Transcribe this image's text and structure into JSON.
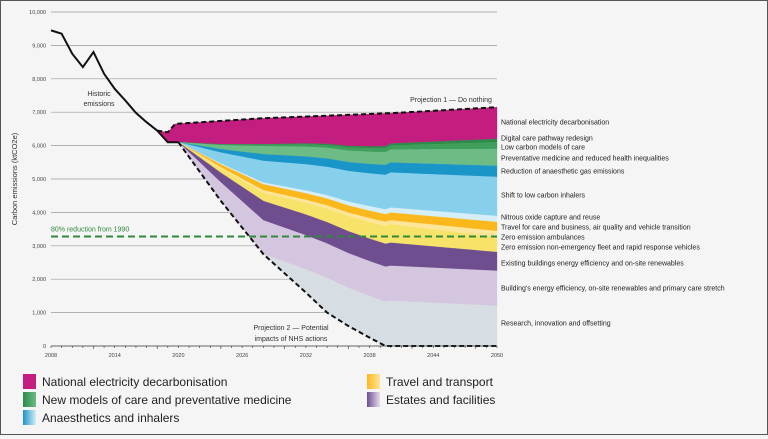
{
  "chart_data": {
    "type": "area",
    "ylabel": "Carbon emissions (ktCO2e)",
    "xlabel": "",
    "xlim": [
      2008,
      2050
    ],
    "ylim": [
      0,
      10000
    ],
    "grid": true,
    "x_ticks": [
      "2008",
      "2014",
      "2020",
      "2026",
      "2032",
      "2038",
      "2044",
      "2050"
    ],
    "y_ticks": [
      "0",
      "1,000",
      "2,000",
      "3,000",
      "4,000",
      "5,000",
      "6,000",
      "7,000",
      "8,000",
      "9,000",
      "10,000"
    ],
    "historic": {
      "name": "Historic emissions",
      "x": [
        2008,
        2009,
        2010,
        2011,
        2012,
        2013,
        2014,
        2015,
        2016,
        2017,
        2018,
        2019,
        2020
      ],
      "y": [
        9450,
        9350,
        8750,
        8350,
        8800,
        8150,
        7700,
        7350,
        6980,
        6700,
        6450,
        6100,
        6100
      ]
    },
    "projection_1": {
      "name": "Projection 1 — Do nothing",
      "x": [
        2018,
        2019,
        2019.7,
        2028,
        2040,
        2050
      ],
      "y": [
        6450,
        6400,
        6650,
        6820,
        6970,
        7150
      ]
    },
    "projection_2": {
      "name": "Projection 2 — Potential impacts of NHS actions",
      "x": [
        2020,
        2024,
        2028,
        2032,
        2034,
        2036,
        2038,
        2039.5,
        2050
      ],
      "y": [
        6100,
        4340,
        2750,
        1600,
        1000,
        600,
        250,
        0,
        0
      ]
    },
    "target": {
      "name": "80% reduction from 1990",
      "y": 3280
    },
    "stack_x": [
      2020,
      2024,
      2028,
      2034,
      2040,
      2050
    ],
    "series": [
      {
        "name": "National electricity decarbonisation",
        "color": "#c21d7f",
        "values": [
          550,
          710,
          780,
          850,
          910,
          950
        ]
      },
      {
        "name": "Digital care pathway redesign",
        "color": "#2e8a4a",
        "values": [
          0,
          10,
          20,
          40,
          60,
          100
        ]
      },
      {
        "name": "Low carbon models of care",
        "color": "#3f9e5c",
        "values": [
          0,
          20,
          40,
          80,
          120,
          200
        ]
      },
      {
        "name": "Preventative medicine and reduced health inequalities",
        "color": "#6dbb85",
        "values": [
          0,
          120,
          240,
          320,
          390,
          510
        ]
      },
      {
        "name": "Reduction of anaesthetic gas emissions",
        "color": "#1a95c8",
        "values": [
          0,
          100,
          200,
          250,
          300,
          330
        ]
      },
      {
        "name": "Shift to low carbon inhalers",
        "color": "#87d0ec",
        "values": [
          0,
          330,
          650,
          850,
          1050,
          1170
        ]
      },
      {
        "name": "Nitrous oxide capture and reuse",
        "color": "#d5eef7",
        "values": [
          0,
          25,
          50,
          100,
          150,
          180
        ]
      },
      {
        "name": "Travel for care and business, air quality and vehicle transition",
        "color": "#fbb81c",
        "values": [
          0,
          90,
          180,
          205,
          230,
          270
        ]
      },
      {
        "name": "Zero emission ambulances",
        "color": "#fde69a",
        "values": [
          0,
          40,
          80,
          100,
          120,
          180
        ]
      },
      {
        "name": "Zero emission non-emergency fleet and rapid response vehicles",
        "color": "#f7e36a",
        "values": [
          0,
          120,
          240,
          400,
          550,
          450
        ]
      },
      {
        "name": "Existing buildings energy efficiency and on-site renewables",
        "color": "#6e4e8f",
        "values": [
          0,
          290,
          580,
          640,
          690,
          560
        ]
      },
      {
        "name": "Building's energy efficiency, on-site renewables and primary care stretch",
        "color": "#d5c6e0",
        "values": [
          0,
          555,
          1010,
          1030,
          1050,
          1050
        ]
      },
      {
        "name": "Research, innovation and offsetting",
        "color": "#d6dde3",
        "values": [
          0,
          0,
          0,
          1035,
          1350,
          1200
        ]
      }
    ],
    "annotations": {
      "historic_1": "Historic",
      "historic_2": "emissions",
      "projection_1": "Projection 1 — Do nothing",
      "projection_2_1": "Projection 2 — Potential",
      "projection_2_2": "impacts of NHS actions",
      "target": "80% reduction from 1990"
    },
    "legend": [
      {
        "label": "National electricity decarbonisation",
        "colors": [
          "#c21d7f",
          "#c21d7f"
        ]
      },
      {
        "label": "New models of care and preventative medicine",
        "colors": [
          "#2e8a4a",
          "#6dbb85"
        ]
      },
      {
        "label": "Anaesthetics and inhalers",
        "colors": [
          "#1a95c8",
          "#d5eef7"
        ]
      },
      {
        "label": "Travel and transport",
        "colors": [
          "#fbb81c",
          "#fde69a"
        ]
      },
      {
        "label": "Estates and facilities",
        "colors": [
          "#6e4e8f",
          "#e6dcec"
        ]
      }
    ]
  }
}
